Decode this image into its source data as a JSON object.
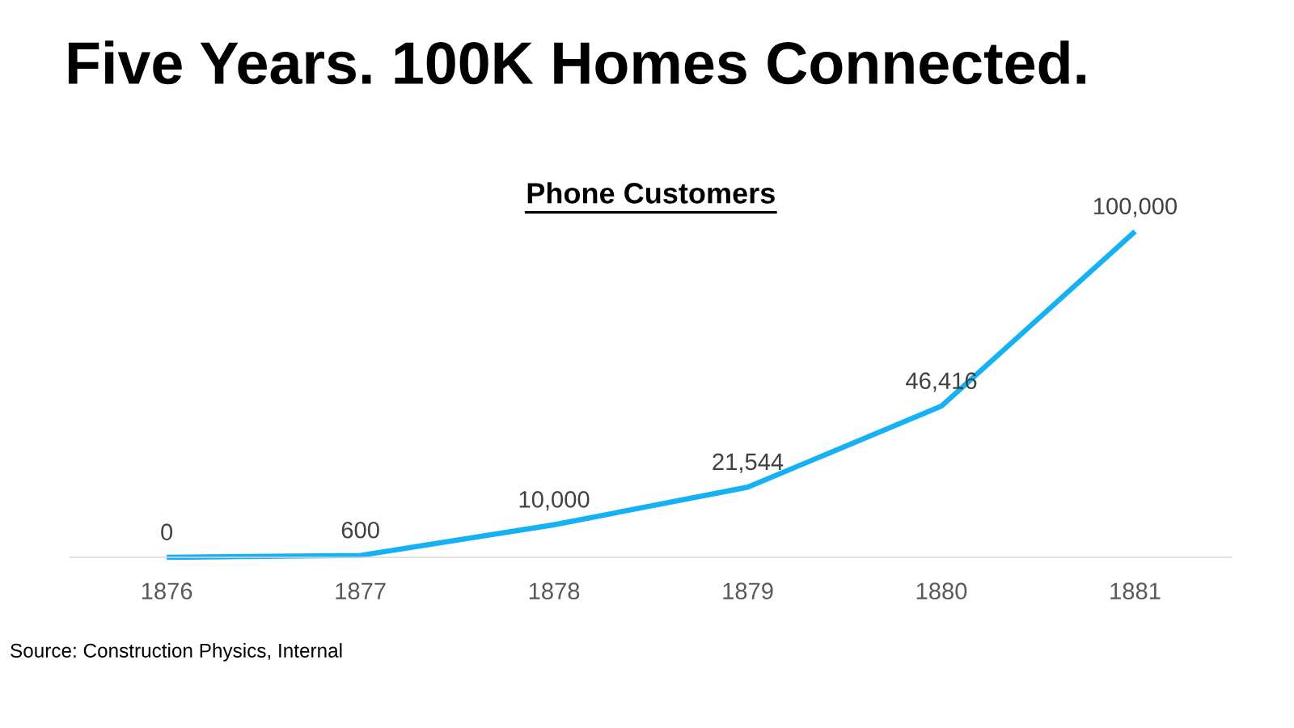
{
  "chart_data": {
    "type": "line",
    "title": "Five Years. 100K Homes Connected.",
    "subtitle": "Phone Customers",
    "categories": [
      "1876",
      "1877",
      "1878",
      "1879",
      "1880",
      "1881"
    ],
    "series": [
      {
        "color": "#16b1f5",
        "values": [
          0,
          600,
          10000,
          21544,
          46416,
          100000
        ],
        "value_labels": [
          "0",
          "600",
          "10,000",
          "21,544",
          "46,416",
          "100,000"
        ]
      }
    ],
    "annotations": [
      "Source: Construction Physics, Internal"
    ]
  }
}
